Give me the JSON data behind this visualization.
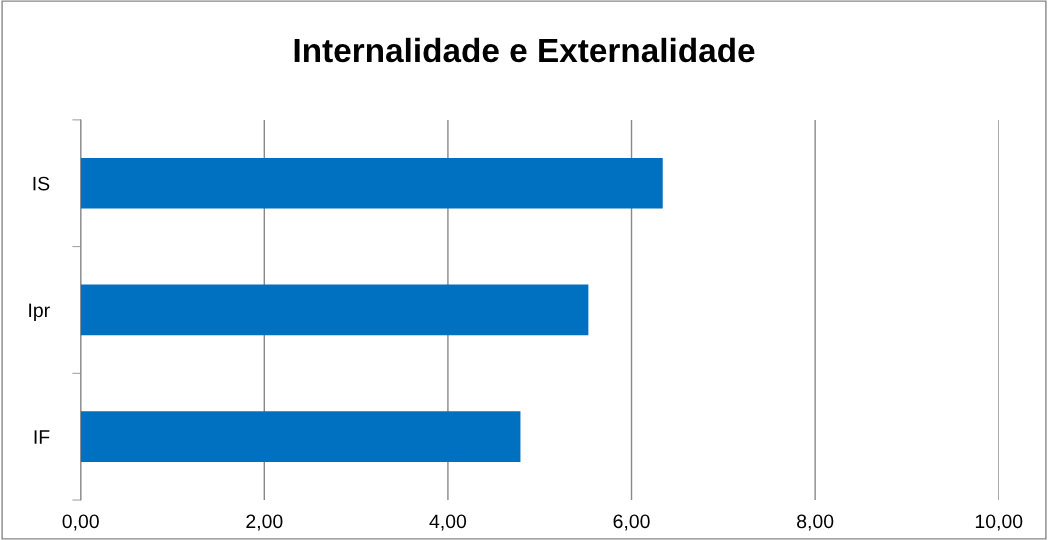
{
  "chart_data": {
    "type": "bar",
    "orientation": "horizontal",
    "title": "Internalidade e Externalidade",
    "categories": [
      "IS",
      "Ipr",
      "IF"
    ],
    "values": [
      6.34,
      5.53,
      4.79
    ],
    "color": "#0070c0",
    "xlim": [
      0,
      10
    ],
    "xticks": [
      {
        "value": 0,
        "label": "0,00"
      },
      {
        "value": 2,
        "label": "2,00"
      },
      {
        "value": 4,
        "label": "4,00"
      },
      {
        "value": 6,
        "label": "6,00"
      },
      {
        "value": 8,
        "label": "8,00"
      },
      {
        "value": 10,
        "label": "10,00"
      }
    ],
    "grid": "x",
    "legend": false
  }
}
